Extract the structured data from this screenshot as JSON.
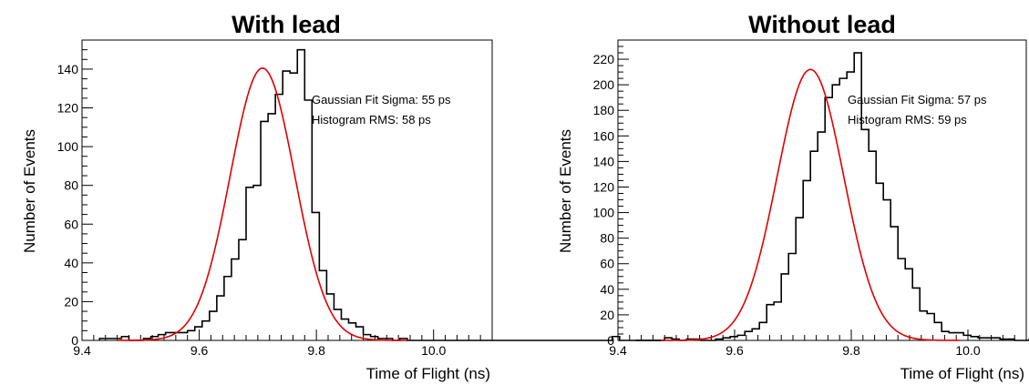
{
  "chart_data": [
    {
      "type": "bar",
      "title": "With lead",
      "xlabel": "Time of Flight (ns)",
      "ylabel": "Number of Events",
      "xlim": [
        9.4,
        10.1
      ],
      "ylim": [
        0,
        155
      ],
      "xticks": [
        9.4,
        9.6,
        9.8,
        10.0
      ],
      "xtick_labels": [
        "9.4",
        "9.6",
        "9.8",
        "10.0"
      ],
      "yticks": [
        0,
        20,
        40,
        60,
        80,
        100,
        120,
        140
      ],
      "yticklabels": [
        "0",
        "20",
        "40",
        "60",
        "80",
        "100",
        "120",
        "140"
      ],
      "grid": false,
      "annotations": [
        "Gaussian Fit Sigma: 55 ps",
        "Histogram RMS: 58 ps"
      ],
      "hist_bins": {
        "start": 9.43,
        "width": 0.0125
      },
      "hist_counts": [
        1,
        1,
        1,
        2,
        0,
        0,
        1,
        2,
        3,
        4,
        4,
        4,
        5,
        7,
        10,
        15,
        23,
        33,
        42,
        52,
        79,
        80,
        113,
        117,
        127,
        139,
        138,
        150,
        124,
        66,
        36,
        24,
        16,
        11,
        9,
        7,
        3,
        2,
        1,
        1,
        0,
        1,
        0,
        0,
        0,
        0,
        0,
        0,
        0,
        0,
        0,
        0,
        0,
        0,
        0,
        0,
        0,
        0,
        0,
        0,
        0,
        0,
        0,
        0,
        0,
        0,
        0,
        0,
        0,
        0,
        2,
        0,
        0,
        0,
        0,
        0,
        0
      ],
      "fit": {
        "mean": 9.708,
        "sigma": 0.055,
        "amplitude": 140.5,
        "color": "#e00000"
      },
      "hist_color": "#000000"
    },
    {
      "type": "bar",
      "title": "Without lead",
      "xlabel": "Time of Flight (ns)",
      "ylabel": "Number of Events",
      "xlim": [
        9.4,
        10.1
      ],
      "ylim": [
        0,
        235
      ],
      "xticks": [
        9.4,
        9.6,
        9.8,
        10.0
      ],
      "xtick_labels": [
        "9.4",
        "9.6",
        "9.8",
        "10.0"
      ],
      "yticks": [
        0,
        20,
        40,
        60,
        80,
        100,
        120,
        140,
        160,
        180,
        200,
        220
      ],
      "yticklabels": [
        "0",
        "20",
        "40",
        "60",
        "80",
        "100",
        "120",
        "140",
        "160",
        "180",
        "200",
        "220"
      ],
      "grid": false,
      "annotations": [
        "Gaussian Fit Sigma: 57 ps",
        "Histogram RMS: 59 ps"
      ],
      "hist_bins": {
        "start": 9.43,
        "width": 0.0125
      },
      "hist_counts": [
        0,
        0,
        0,
        0,
        2,
        1,
        0,
        1,
        1,
        0,
        0,
        1,
        2,
        3,
        4,
        7,
        9,
        14,
        28,
        30,
        52,
        68,
        96,
        125,
        148,
        163,
        190,
        200,
        205,
        210,
        225,
        165,
        148,
        123,
        110,
        89,
        64,
        56,
        41,
        23,
        21,
        14,
        7,
        6,
        6,
        4,
        3,
        2,
        2,
        2,
        1,
        1,
        0,
        0,
        1,
        0
      ],
      "fit": {
        "mean": 9.73,
        "sigma": 0.057,
        "amplitude": 212,
        "color": "#e00000"
      },
      "hist_color": "#000000"
    }
  ]
}
